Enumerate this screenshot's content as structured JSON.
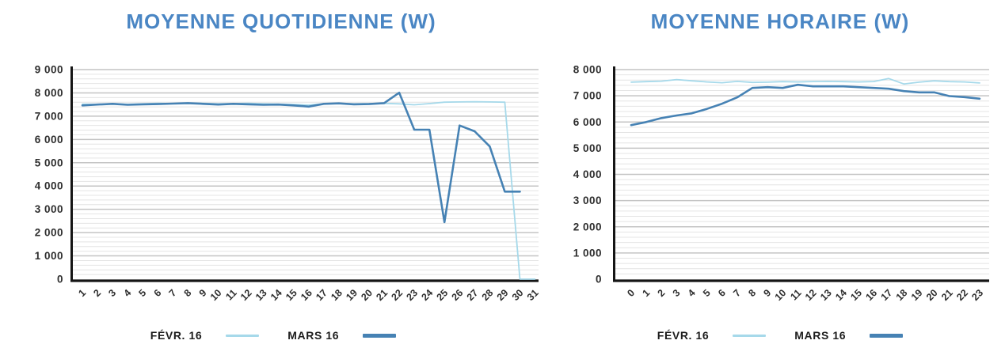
{
  "chart_data": [
    {
      "type": "line",
      "title": "MOYENNE QUOTIDIENNE (W)",
      "xlabel": "",
      "ylabel": "",
      "x": [
        "1",
        "2",
        "3",
        "4",
        "5",
        "6",
        "7",
        "8",
        "9",
        "10",
        "11",
        "12",
        "13",
        "14",
        "15",
        "16",
        "17",
        "18",
        "19",
        "20",
        "21",
        "22",
        "23",
        "24",
        "25",
        "26",
        "27",
        "28",
        "29",
        "30",
        "31"
      ],
      "ylim": [
        0,
        9000
      ],
      "y_tick_step": 1000,
      "y_minor_step": 200,
      "y_ticks": [
        "0",
        "1 000",
        "2 000",
        "3 000",
        "4 000",
        "5 000",
        "6 000",
        "7 000",
        "8 000",
        "9 000"
      ],
      "grid": "horizontal",
      "legend_position": "bottom",
      "series": [
        {
          "name": "FÉVR. 16",
          "color": "#a6d9ea",
          "stroke_width": 1.8,
          "values": [
            7520,
            7500,
            7540,
            7510,
            7530,
            7550,
            7540,
            7560,
            7550,
            7530,
            7540,
            7550,
            7530,
            7520,
            7500,
            7480,
            7530,
            7540,
            7530,
            7540,
            7550,
            7530,
            7490,
            7540,
            7600,
            7610,
            7620,
            7610,
            7600,
            0,
            0
          ]
        },
        {
          "name": "MARS 16",
          "color": "#4682b4",
          "stroke_width": 2.6,
          "values": [
            7460,
            7500,
            7530,
            7490,
            7510,
            7520,
            7540,
            7560,
            7530,
            7500,
            7530,
            7510,
            7490,
            7500,
            7460,
            7410,
            7530,
            7550,
            7510,
            7520,
            7560,
            8010,
            6420,
            6420,
            2450,
            6600,
            6350,
            5700,
            3760,
            3760,
            null
          ]
        }
      ]
    },
    {
      "type": "line",
      "title": "MOYENNE HORAIRE (W)",
      "xlabel": "",
      "ylabel": "",
      "x": [
        "0",
        "1",
        "2",
        "3",
        "4",
        "5",
        "6",
        "7",
        "8",
        "9",
        "10",
        "11",
        "12",
        "13",
        "14",
        "15",
        "16",
        "17",
        "18",
        "19",
        "20",
        "21",
        "22",
        "23"
      ],
      "ylim": [
        0,
        8000
      ],
      "y_tick_step": 1000,
      "y_minor_step": 200,
      "y_ticks": [
        "0",
        "1 000",
        "2 000",
        "3 000",
        "4 000",
        "5 000",
        "6 000",
        "7 000",
        "8 000"
      ],
      "grid": "horizontal",
      "legend_position": "bottom",
      "series": [
        {
          "name": "FÉVR. 16",
          "color": "#a6d9ea",
          "stroke_width": 1.8,
          "values": [
            7520,
            7540,
            7560,
            7620,
            7570,
            7530,
            7500,
            7550,
            7510,
            7520,
            7540,
            7530,
            7545,
            7550,
            7540,
            7530,
            7545,
            7660,
            7450,
            7520,
            7570,
            7540,
            7530,
            7490
          ]
        },
        {
          "name": "MARS 16",
          "color": "#4682b4",
          "stroke_width": 2.6,
          "values": [
            5880,
            6000,
            6150,
            6250,
            6330,
            6500,
            6700,
            6940,
            7300,
            7330,
            7300,
            7420,
            7360,
            7360,
            7360,
            7330,
            7300,
            7270,
            7180,
            7130,
            7130,
            6990,
            6950,
            6890
          ]
        }
      ]
    }
  ],
  "style": {
    "title_color": "#4a86c4",
    "axis_color": "#151515",
    "tick_label_color": "#2e2e2e",
    "grid_minor_color": "#e4e4e4",
    "grid_major_color": "#c4c4c4",
    "legend_text_color": "#1d1d1d",
    "background_color": "#ffffff"
  }
}
